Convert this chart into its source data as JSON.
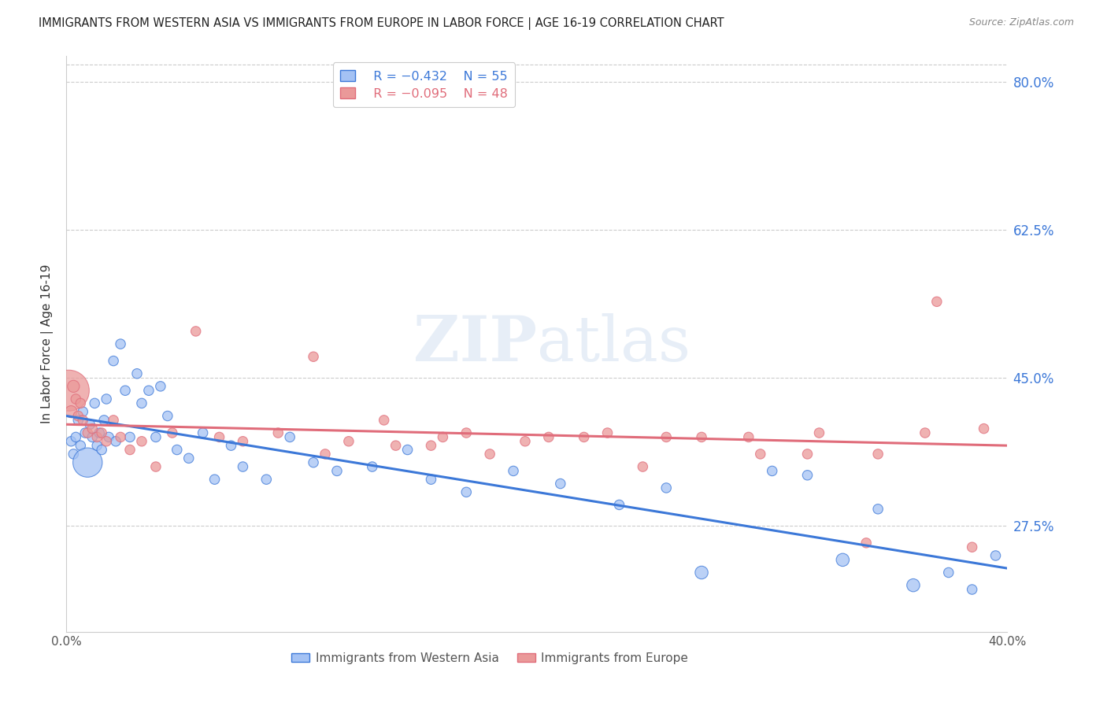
{
  "title": "IMMIGRANTS FROM WESTERN ASIA VS IMMIGRANTS FROM EUROPE IN LABOR FORCE | AGE 16-19 CORRELATION CHART",
  "source": "Source: ZipAtlas.com",
  "ylabel": "In Labor Force | Age 16-19",
  "xmin": 0.0,
  "xmax": 40.0,
  "ymin": 15.0,
  "ymax": 83.0,
  "legend_r1": "R = −0.432",
  "legend_n1": "N = 55",
  "legend_r2": "R = −0.095",
  "legend_n2": "N = 48",
  "color_blue": "#a4c2f4",
  "color_pink": "#ea9999",
  "line_color_blue": "#3c78d8",
  "line_color_pink": "#e06c7a",
  "ytick_positions": [
    27.5,
    45.0,
    62.5,
    80.0
  ],
  "ytick_labels": [
    "27.5%",
    "45.0%",
    "62.5%",
    "80.0%"
  ],
  "blue_x": [
    0.2,
    0.3,
    0.4,
    0.5,
    0.6,
    0.7,
    0.8,
    0.9,
    1.0,
    1.1,
    1.2,
    1.3,
    1.4,
    1.5,
    1.6,
    1.7,
    1.8,
    2.0,
    2.1,
    2.3,
    2.5,
    2.7,
    3.0,
    3.2,
    3.5,
    3.8,
    4.0,
    4.3,
    4.7,
    5.2,
    5.8,
    6.3,
    7.0,
    7.5,
    8.5,
    9.5,
    10.5,
    11.5,
    13.0,
    14.5,
    15.5,
    17.0,
    19.0,
    21.0,
    23.5,
    25.5,
    27.0,
    30.0,
    31.5,
    33.0,
    34.5,
    36.0,
    37.5,
    38.5,
    39.5
  ],
  "blue_y": [
    37.5,
    36.0,
    38.0,
    40.0,
    37.0,
    41.0,
    38.5,
    35.0,
    39.5,
    38.0,
    42.0,
    37.0,
    38.5,
    36.5,
    40.0,
    42.5,
    38.0,
    47.0,
    37.5,
    49.0,
    43.5,
    38.0,
    45.5,
    42.0,
    43.5,
    38.0,
    44.0,
    40.5,
    36.5,
    35.5,
    38.5,
    33.0,
    37.0,
    34.5,
    33.0,
    38.0,
    35.0,
    34.0,
    34.5,
    36.5,
    33.0,
    31.5,
    34.0,
    32.5,
    30.0,
    32.0,
    22.0,
    34.0,
    33.5,
    23.5,
    29.5,
    20.5,
    22.0,
    20.0,
    24.0
  ],
  "blue_s": [
    20,
    20,
    20,
    20,
    20,
    20,
    20,
    180,
    20,
    20,
    20,
    20,
    20,
    20,
    20,
    20,
    20,
    20,
    20,
    20,
    20,
    20,
    20,
    20,
    20,
    20,
    20,
    20,
    20,
    20,
    20,
    20,
    20,
    20,
    20,
    20,
    20,
    20,
    20,
    20,
    20,
    20,
    20,
    20,
    20,
    20,
    35,
    20,
    20,
    35,
    20,
    35,
    20,
    20,
    20
  ],
  "pink_x": [
    0.1,
    0.2,
    0.3,
    0.4,
    0.5,
    0.6,
    0.7,
    0.9,
    1.1,
    1.3,
    1.5,
    1.7,
    2.0,
    2.3,
    2.7,
    3.2,
    3.8,
    4.5,
    5.5,
    6.5,
    7.5,
    9.0,
    10.5,
    12.0,
    13.5,
    15.5,
    17.0,
    19.5,
    22.0,
    24.5,
    27.0,
    29.5,
    32.0,
    34.5,
    36.5,
    38.5,
    11.0,
    14.0,
    16.0,
    18.0,
    20.5,
    23.0,
    25.5,
    29.0,
    31.5,
    34.0,
    37.0,
    39.0
  ],
  "pink_y": [
    43.5,
    41.0,
    44.0,
    42.5,
    40.5,
    42.0,
    40.0,
    38.5,
    39.0,
    38.0,
    38.5,
    37.5,
    40.0,
    38.0,
    36.5,
    37.5,
    34.5,
    38.5,
    50.5,
    38.0,
    37.5,
    38.5,
    47.5,
    37.5,
    40.0,
    37.0,
    38.5,
    37.5,
    38.0,
    34.5,
    38.0,
    36.0,
    38.5,
    36.0,
    38.5,
    25.0,
    36.0,
    37.0,
    38.0,
    36.0,
    38.0,
    38.5,
    38.0,
    38.0,
    36.0,
    25.5,
    54.0,
    39.0
  ],
  "pink_s": [
    350,
    30,
    30,
    20,
    20,
    20,
    20,
    20,
    20,
    20,
    20,
    20,
    20,
    20,
    20,
    20,
    20,
    20,
    20,
    20,
    20,
    20,
    20,
    20,
    20,
    20,
    20,
    20,
    20,
    20,
    20,
    20,
    20,
    20,
    20,
    20,
    20,
    20,
    20,
    20,
    20,
    20,
    20,
    20,
    20,
    20,
    20,
    20
  ],
  "blue_line_x0": 0.0,
  "blue_line_x1": 40.0,
  "blue_line_y0": 40.5,
  "blue_line_y1": 22.5,
  "pink_line_x0": 0.0,
  "pink_line_x1": 40.0,
  "pink_line_y0": 39.5,
  "pink_line_y1": 37.0
}
